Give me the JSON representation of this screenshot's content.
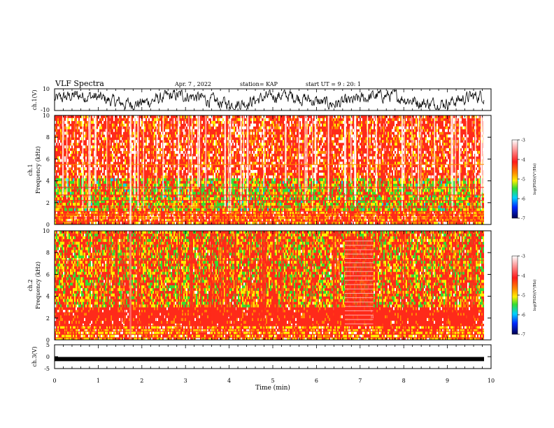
{
  "header": {
    "title": "VLF Spectra",
    "date": "Apr. 7 , 2022",
    "station": "station= KAP",
    "start": "start UT = 9 : 20: 1"
  },
  "chart_data": [
    {
      "type": "line",
      "panel": "ch1-waveform",
      "ylabel": "ch.1(V)",
      "ylim": [
        -10,
        10
      ],
      "yticks": [
        "10",
        "-10"
      ],
      "xlim": [
        0,
        10
      ]
    },
    {
      "type": "heatmap",
      "panel": "ch1-spectrogram",
      "ylabel": "ch.1\nFrequency (kHz)",
      "ylim": [
        0,
        10
      ],
      "yticks": [
        "0",
        "2",
        "4",
        "6",
        "8",
        "10"
      ],
      "xlim": [
        0,
        10
      ],
      "colorbar": {
        "label": "log(PSD)(V²/Hz)",
        "range": [
          -7,
          -3
        ],
        "ticks": [
          "-3",
          "-4",
          "-5",
          "-6",
          "-7"
        ]
      }
    },
    {
      "type": "heatmap",
      "panel": "ch2-spectrogram",
      "ylabel": "ch.2\nFrequency (kHz)",
      "ylim": [
        0,
        10
      ],
      "yticks": [
        "0",
        "2",
        "4",
        "6",
        "8",
        "10"
      ],
      "xlim": [
        0,
        10
      ],
      "colorbar": {
        "label": "log(PSD)(V²/Hz)",
        "range": [
          -7,
          -3
        ],
        "ticks": [
          "-3",
          "-4",
          "-5",
          "-6",
          "-7"
        ]
      }
    },
    {
      "type": "line",
      "panel": "ch3-signal",
      "ylabel": "ch.3(V)",
      "ylim": [
        -5,
        5
      ],
      "yticks": [
        "5",
        "0",
        "-5"
      ],
      "xlim": [
        0,
        10
      ],
      "value_approx": -1
    }
  ],
  "xaxis": {
    "label": "Time (min)",
    "ticks": [
      "0",
      "1",
      "2",
      "3",
      "4",
      "5",
      "6",
      "7",
      "8",
      "9",
      "10"
    ]
  },
  "colors": {
    "red": "#ff2a1a",
    "orange": "#ff8a00",
    "yellow": "#ffee00",
    "green": "#33dd33",
    "cyan": "#00d0ff",
    "blue": "#0028ff",
    "navy": "#000050",
    "white": "#ffffff"
  }
}
